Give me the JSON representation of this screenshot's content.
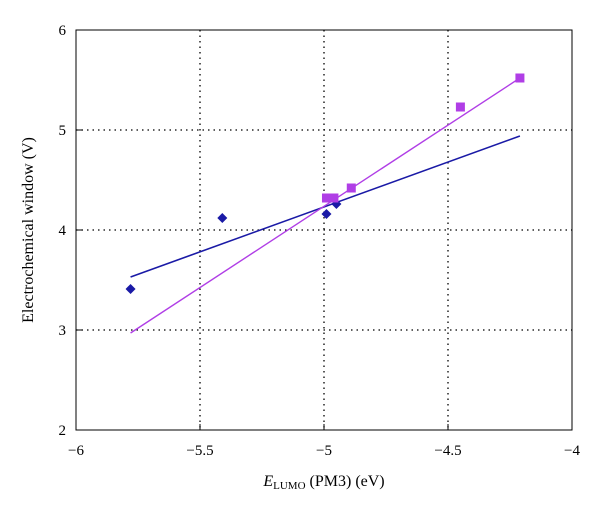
{
  "chart_data": {
    "type": "scatter",
    "xlabel_main": "E",
    "xlabel_sub": "LUMO",
    "xlabel_rest": " (PM3) (eV)",
    "ylabel": "Electrochemical window (V)",
    "xlim": [
      -6,
      -4
    ],
    "ylim": [
      2,
      6
    ],
    "xticks": [
      -6,
      -5.5,
      -5,
      -4.5,
      -4
    ],
    "xtick_labels": [
      "−6",
      "−5.5",
      "−5",
      "−4.5",
      "−4"
    ],
    "yticks": [
      2,
      3,
      4,
      5,
      6
    ],
    "ytick_labels": [
      "2",
      "3",
      "4",
      "5",
      "6"
    ],
    "grid": true,
    "series": [
      {
        "marker": "diamond",
        "color": "#1a1aa6",
        "points": [
          {
            "x": -5.78,
            "y": 3.41
          },
          {
            "x": -5.41,
            "y": 4.12
          },
          {
            "x": -4.99,
            "y": 4.16
          },
          {
            "x": -4.95,
            "y": 4.26
          }
        ],
        "trend": [
          {
            "x": -5.78,
            "y": 3.53
          },
          {
            "x": -4.21,
            "y": 4.94
          }
        ]
      },
      {
        "marker": "square",
        "color": "#b03ee6",
        "points": [
          {
            "x": -4.99,
            "y": 4.32
          },
          {
            "x": -4.96,
            "y": 4.32
          },
          {
            "x": -4.89,
            "y": 4.42
          },
          {
            "x": -4.45,
            "y": 5.23
          },
          {
            "x": -4.21,
            "y": 5.52
          }
        ],
        "trend": [
          {
            "x": -5.78,
            "y": 2.97
          },
          {
            "x": -4.21,
            "y": 5.52
          }
        ]
      }
    ]
  }
}
